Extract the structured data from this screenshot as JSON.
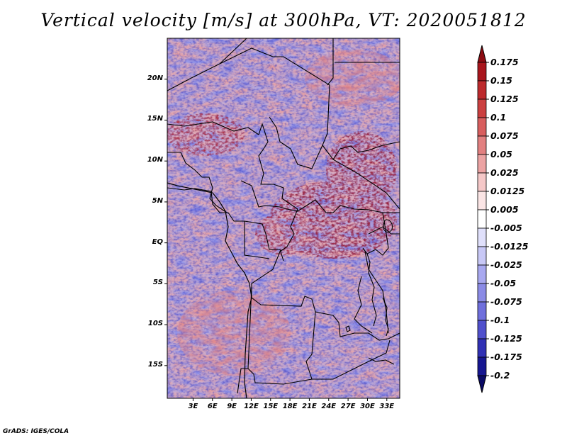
{
  "title": "Vertical velocity [m/s] at 300hPa, VT: 2020051812",
  "credit": "GrADS: IGES/COLA",
  "map": {
    "variable": "Vertical velocity",
    "units": "m/s",
    "level": "300hPa",
    "valid_time": "2020051812",
    "lon_range_deg_east": [
      -1,
      35
    ],
    "lat_range_deg_north": [
      -19,
      25
    ],
    "lat_ticks": [
      {
        "label": "20N",
        "lat": 20
      },
      {
        "label": "15N",
        "lat": 15
      },
      {
        "label": "10N",
        "lat": 10
      },
      {
        "label": "5N",
        "lat": 5
      },
      {
        "label": "EQ",
        "lat": 0
      },
      {
        "label": "5S",
        "lat": -5
      },
      {
        "label": "10S",
        "lat": -10
      },
      {
        "label": "15S",
        "lat": -15
      }
    ],
    "lon_ticks": [
      {
        "label": "3E",
        "lon": 3
      },
      {
        "label": "6E",
        "lon": 6
      },
      {
        "label": "9E",
        "lon": 9
      },
      {
        "label": "12E",
        "lon": 12
      },
      {
        "label": "15E",
        "lon": 15
      },
      {
        "label": "18E",
        "lon": 18
      },
      {
        "label": "21E",
        "lon": 21
      },
      {
        "label": "24E",
        "lon": 24
      },
      {
        "label": "27E",
        "lon": 27
      },
      {
        "label": "30E",
        "lon": 30
      },
      {
        "label": "33E",
        "lon": 33
      }
    ]
  },
  "colorbar": {
    "labels": [
      "0.175",
      "0.15",
      "0.125",
      "0.1",
      "0.075",
      "0.05",
      "0.025",
      "0.0125",
      "0.005",
      "-0.005",
      "-0.0125",
      "-0.025",
      "-0.05",
      "-0.075",
      "-0.1",
      "-0.125",
      "-0.175",
      "-0.2"
    ],
    "colors": [
      "#8c0c12",
      "#a8151c",
      "#bd2a2d",
      "#cb4040",
      "#d85e5e",
      "#e28080",
      "#eca3a3",
      "#f5c8c8",
      "#fbe5e5",
      "#ffffff",
      "#e0e0fb",
      "#c8c8f6",
      "#a8a8ef",
      "#8b8be6",
      "#6f6fdc",
      "#5050cc",
      "#3030b4",
      "#161690",
      "#0a0a66"
    ]
  }
}
